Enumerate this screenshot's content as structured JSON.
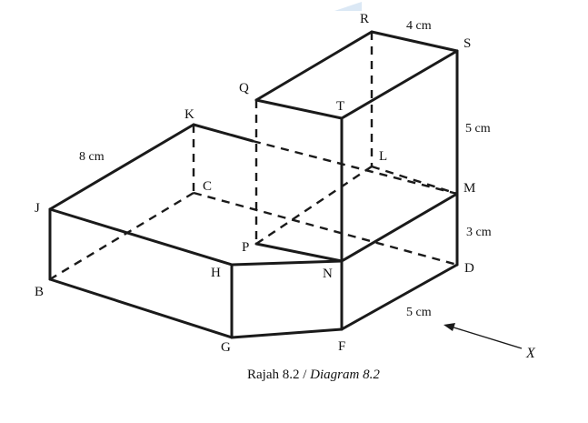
{
  "vertices": {
    "R": "R",
    "S": "S",
    "Q": "Q",
    "T": "T",
    "K": "K",
    "L": "L",
    "J": "J",
    "C": "C",
    "M": "M",
    "P": "P",
    "H": "H",
    "N": "N",
    "B": "B",
    "D": "D",
    "G": "G",
    "F": "F"
  },
  "dimensions": {
    "rs": "4 cm",
    "jk": "8 cm",
    "sm": "5 cm",
    "md": "3 cm",
    "fd": "5 cm"
  },
  "direction_label": "X",
  "caption_main": "Rajah 8.2 / ",
  "caption_italic": "Diagram 8.2",
  "colors": {
    "ink": "#1a1a1a",
    "highlight": "#dbe8f5"
  }
}
